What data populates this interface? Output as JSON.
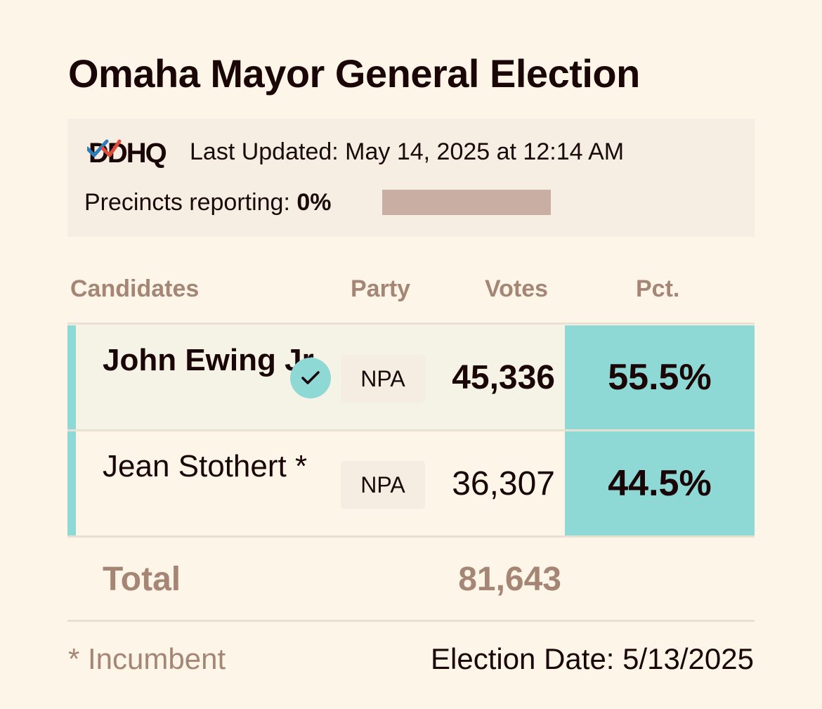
{
  "title": "Omaha Mayor General Election",
  "source": {
    "logo_text": "DDHQ",
    "last_updated": "Last Updated: May 14, 2025 at 12:14 AM",
    "precincts_label": "Precincts reporting: ",
    "precincts_value": "0%",
    "precincts_fraction": 0
  },
  "table": {
    "headers": {
      "candidates": "Candidates",
      "party": "Party",
      "votes": "Votes",
      "pct": "Pct."
    },
    "rows": [
      {
        "name": "John Ewing Jr.",
        "party": "NPA",
        "votes": "45,336",
        "pct": "55.5%",
        "winner": true
      },
      {
        "name": "Jean Stothert *",
        "party": "NPA",
        "votes": "36,307",
        "pct": "44.5%",
        "winner": false
      }
    ],
    "total_label": "Total",
    "total_votes": "81,643"
  },
  "footer": {
    "incumbent_note": "* Incumbent",
    "election_date": "Election Date: 5/13/2025"
  },
  "colors": {
    "background": "#fdf5e8",
    "accent": "#8ed8d6",
    "muted_text": "#a58675",
    "progress_track": "#c9aea3"
  }
}
